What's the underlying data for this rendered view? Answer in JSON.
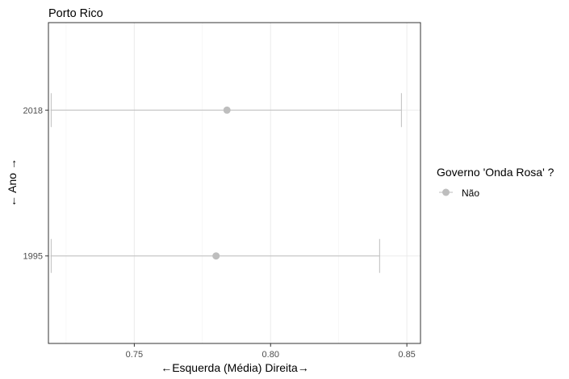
{
  "chart_data": {
    "type": "scatter",
    "title": "Porto Rico",
    "xlabel": "←Esquerda (Média) Direita→",
    "ylabel": "← Ano →",
    "xlim": [
      0.7185,
      0.855
    ],
    "x_ticks": [
      0.75,
      0.8,
      0.85
    ],
    "x_tick_labels": [
      "0.75",
      "0.80",
      "0.85"
    ],
    "categories": [
      "1995",
      "2018"
    ],
    "grid": true,
    "series": [
      {
        "name": "Não",
        "color": "#bebebe",
        "points": [
          {
            "y": "1995",
            "x": 0.78,
            "xmin": 0.7195,
            "xmax": 0.84
          },
          {
            "y": "2018",
            "x": 0.784,
            "xmin": 0.7195,
            "xmax": 0.848
          }
        ]
      }
    ],
    "legend": {
      "position": "right",
      "title": "Governo 'Onda Rosa' ?",
      "entries": [
        "Não"
      ]
    }
  }
}
